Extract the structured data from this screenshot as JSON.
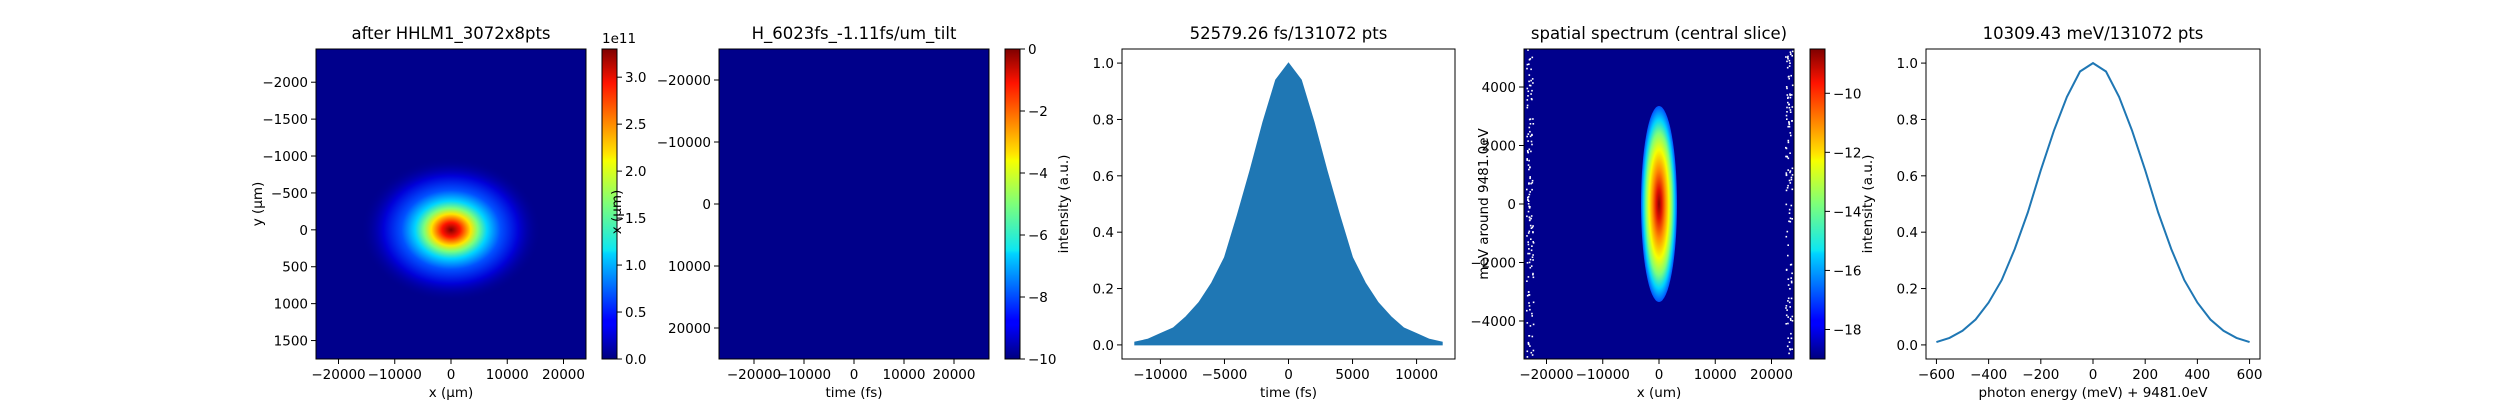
{
  "chart_data": [
    {
      "type": "heatmap",
      "title": "after HHLM1_3072x8pts",
      "xlabel": "x (μm)",
      "ylabel": "y (μm)",
      "xlim": [
        -24000,
        24000
      ],
      "ylim": [
        -2450,
        1750
      ],
      "y_inverted": true,
      "xticks": [
        "−20000",
        "−10000",
        "0",
        "10000",
        "20000"
      ],
      "yticks": [
        "−2000",
        "−1500",
        "−1000",
        "−500",
        "0",
        "500",
        "1000",
        "1500"
      ],
      "colormap": "jet",
      "colorbar": {
        "ticks": [
          "0.0",
          "0.5",
          "1.0",
          "1.5",
          "2.0",
          "2.5",
          "3.0"
        ],
        "min": 0,
        "max": 3.3,
        "offset_label": "1e11",
        "label": "x (μm)"
      },
      "peak": {
        "x": 0,
        "y": 0,
        "value": 330000000000.0
      }
    },
    {
      "type": "heatmap",
      "title": "H_6023fs_-1.11fs/um_tilt",
      "xlabel": "time (fs)",
      "ylabel": "",
      "xlim": [
        -27000,
        27000
      ],
      "ylim": [
        -25000,
        25000
      ],
      "y_inverted": true,
      "xticks": [
        "−20000",
        "−10000",
        "0",
        "10000",
        "20000"
      ],
      "yticks": [
        "−20000",
        "−10000",
        "0",
        "10000",
        "20000"
      ],
      "colormap": "jet",
      "uniform_value": -10,
      "colorbar": {
        "ticks": [
          "0",
          "−2",
          "−4",
          "−6",
          "−8",
          "−10"
        ],
        "min": -10,
        "max": 0
      }
    },
    {
      "type": "area",
      "title": "52579.26 fs/131072 pts",
      "xlabel": "time (fs)",
      "ylabel": "intensity (a.u.)",
      "xlim": [
        -13000,
        13000
      ],
      "ylim": [
        -0.05,
        1.05
      ],
      "xticks": [
        "−10000",
        "−5000",
        "0",
        "5000",
        "10000"
      ],
      "yticks": [
        "0.0",
        "0.2",
        "0.4",
        "0.6",
        "0.8",
        "1.0"
      ],
      "color": "#1f77b4",
      "x": [
        -12000,
        -11000,
        -10000,
        -9000,
        -8000,
        -7000,
        -6000,
        -5000,
        -4000,
        -3000,
        -2000,
        -1000,
        0,
        1000,
        2000,
        3000,
        4000,
        5000,
        6000,
        7000,
        8000,
        9000,
        10000,
        11000,
        12000
      ],
      "values": [
        0.01,
        0.02,
        0.04,
        0.06,
        0.1,
        0.15,
        0.22,
        0.31,
        0.46,
        0.62,
        0.79,
        0.94,
        1.0,
        0.94,
        0.79,
        0.62,
        0.46,
        0.31,
        0.22,
        0.15,
        0.1,
        0.06,
        0.04,
        0.02,
        0.01
      ]
    },
    {
      "type": "heatmap",
      "title": "spatial spectrum (central slice)",
      "xlabel": "x (um)",
      "ylabel": "meV around 9481.0eV",
      "xlim": [
        -24000,
        24000
      ],
      "ylim": [
        -5300,
        5300
      ],
      "xticks": [
        "−20000",
        "−10000",
        "0",
        "10000",
        "20000"
      ],
      "yticks": [
        "4000",
        "2000",
        "0",
        "−2000",
        "−4000"
      ],
      "colormap": "jet",
      "colorbar": {
        "ticks": [
          "−10",
          "−12",
          "−14",
          "−16",
          "−18"
        ],
        "min": -19,
        "max": -8.5
      }
    },
    {
      "type": "line",
      "title": "10309.43 meV/131072 pts",
      "xlabel": "photon energy (meV) + 9481.0eV",
      "ylabel": "intensity (a.u.)",
      "xlim": [
        -640,
        640
      ],
      "ylim": [
        -0.05,
        1.05
      ],
      "xticks": [
        "−600",
        "−400",
        "−200",
        "0",
        "200",
        "400",
        "600"
      ],
      "yticks": [
        "0.0",
        "0.2",
        "0.4",
        "0.6",
        "0.8",
        "1.0"
      ],
      "color": "#1f77b4",
      "x": [
        -600,
        -550,
        -500,
        -450,
        -400,
        -350,
        -300,
        -250,
        -200,
        -150,
        -100,
        -50,
        0,
        50,
        100,
        150,
        200,
        250,
        300,
        350,
        400,
        450,
        500,
        550,
        600
      ],
      "values": [
        0.01,
        0.025,
        0.05,
        0.09,
        0.15,
        0.23,
        0.34,
        0.47,
        0.62,
        0.76,
        0.88,
        0.97,
        1.0,
        0.97,
        0.88,
        0.76,
        0.62,
        0.47,
        0.34,
        0.23,
        0.15,
        0.09,
        0.05,
        0.025,
        0.01
      ]
    }
  ]
}
